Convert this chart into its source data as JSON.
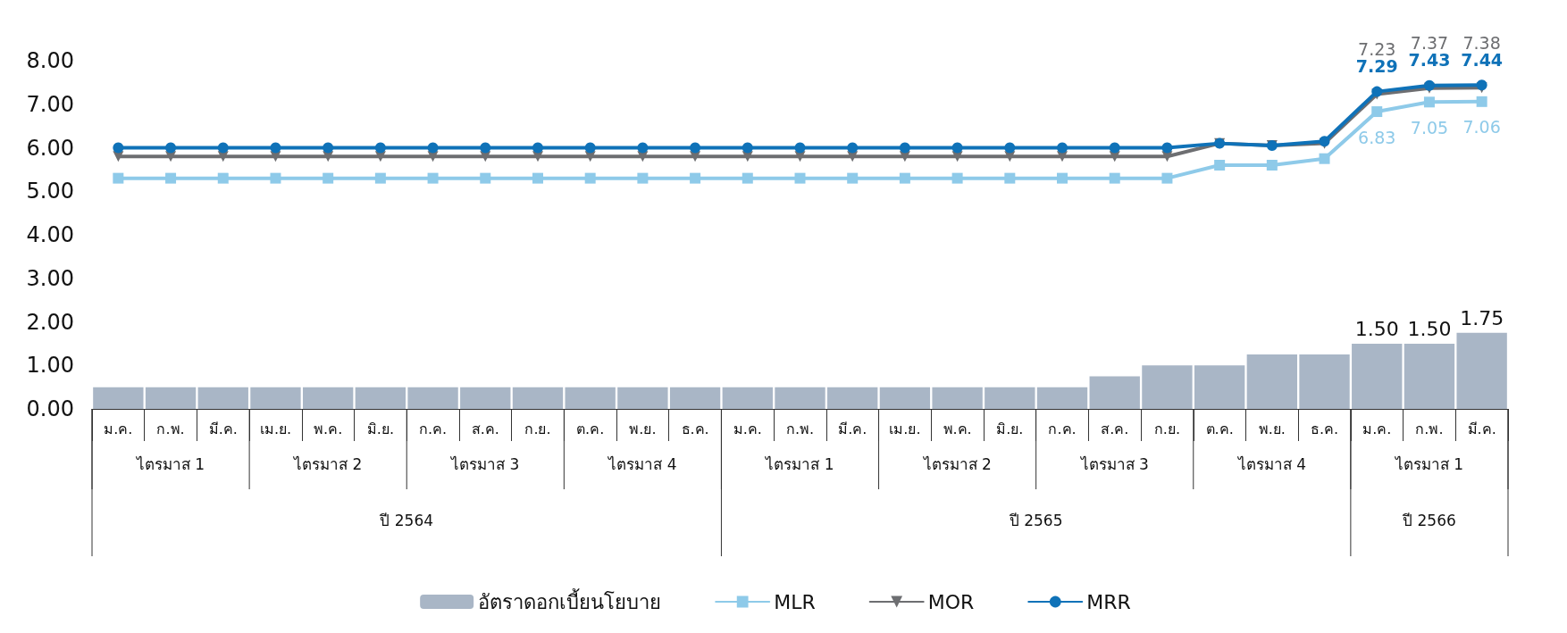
{
  "chart_data": {
    "type": "bar",
    "categories": [
      "ม.ค.",
      "ก.พ.",
      "มี.ค.",
      "เม.ย.",
      "พ.ค.",
      "มิ.ย.",
      "ก.ค.",
      "ส.ค.",
      "ก.ย.",
      "ต.ค.",
      "พ.ย.",
      "ธ.ค.",
      "ม.ค.",
      "ก.พ.",
      "มี.ค.",
      "เม.ย.",
      "พ.ค.",
      "มิ.ย.",
      "ก.ค.",
      "ส.ค.",
      "ก.ย.",
      "ต.ค.",
      "พ.ย.",
      "ธ.ค.",
      "ม.ค.",
      "ก.พ.",
      "มี.ค."
    ],
    "series": [
      {
        "name": "อัตราดอกเบี้ยนโยบาย",
        "color": "#a9b6c6",
        "values": [
          0.5,
          0.5,
          0.5,
          0.5,
          0.5,
          0.5,
          0.5,
          0.5,
          0.5,
          0.5,
          0.5,
          0.5,
          0.5,
          0.5,
          0.5,
          0.5,
          0.5,
          0.5,
          0.5,
          0.75,
          1.0,
          1.0,
          1.25,
          1.25,
          1.5,
          1.5,
          1.75
        ],
        "value_labels": [
          null,
          null,
          null,
          null,
          null,
          null,
          null,
          null,
          null,
          null,
          null,
          null,
          null,
          null,
          null,
          null,
          null,
          null,
          null,
          null,
          null,
          null,
          null,
          null,
          "1.50",
          "1.50",
          "1.75"
        ]
      },
      {
        "name": "MLR",
        "type": "line",
        "marker": "square",
        "color": "#8ecae9",
        "values": [
          5.3,
          5.3,
          5.3,
          5.3,
          5.3,
          5.3,
          5.3,
          5.3,
          5.3,
          5.3,
          5.3,
          5.3,
          5.3,
          5.3,
          5.3,
          5.3,
          5.3,
          5.3,
          5.3,
          5.3,
          5.3,
          5.6,
          5.6,
          5.75,
          6.83,
          7.05,
          7.06
        ],
        "value_labels": [
          null,
          null,
          null,
          null,
          null,
          null,
          null,
          null,
          null,
          null,
          null,
          null,
          null,
          null,
          null,
          null,
          null,
          null,
          null,
          null,
          null,
          null,
          null,
          null,
          "6.83",
          "7.05",
          "7.06"
        ]
      },
      {
        "name": "MOR",
        "type": "line",
        "marker": "triangle",
        "color": "#6d6e71",
        "values": [
          5.8,
          5.8,
          5.8,
          5.8,
          5.8,
          5.8,
          5.8,
          5.8,
          5.8,
          5.8,
          5.8,
          5.8,
          5.8,
          5.8,
          5.8,
          5.8,
          5.8,
          5.8,
          5.8,
          5.8,
          5.8,
          6.1,
          6.05,
          6.1,
          7.23,
          7.37,
          7.38
        ],
        "value_labels": [
          null,
          null,
          null,
          null,
          null,
          null,
          null,
          null,
          null,
          null,
          null,
          null,
          null,
          null,
          null,
          null,
          null,
          null,
          null,
          null,
          null,
          null,
          null,
          null,
          "7.23",
          "7.37",
          "7.38"
        ]
      },
      {
        "name": "MRR",
        "type": "line",
        "marker": "circle",
        "color": "#0f72b8",
        "values": [
          6.0,
          6.0,
          6.0,
          6.0,
          6.0,
          6.0,
          6.0,
          6.0,
          6.0,
          6.0,
          6.0,
          6.0,
          6.0,
          6.0,
          6.0,
          6.0,
          6.0,
          6.0,
          6.0,
          6.0,
          6.0,
          6.1,
          6.05,
          6.15,
          7.29,
          7.43,
          7.44
        ],
        "value_labels": [
          null,
          null,
          null,
          null,
          null,
          null,
          null,
          null,
          null,
          null,
          null,
          null,
          null,
          null,
          null,
          null,
          null,
          null,
          null,
          null,
          null,
          null,
          null,
          null,
          "7.29",
          "7.43",
          "7.44"
        ]
      }
    ],
    "ylim": [
      0,
      8
    ],
    "yticks": [
      {
        "value": 0,
        "label": "0.00"
      },
      {
        "value": 1,
        "label": "1.00"
      },
      {
        "value": 2,
        "label": "2.00"
      },
      {
        "value": 3,
        "label": "3.00"
      },
      {
        "value": 4,
        "label": "4.00"
      },
      {
        "value": 5,
        "label": "5.00"
      },
      {
        "value": 6,
        "label": "6.00"
      },
      {
        "value": 7,
        "label": "7.00"
      },
      {
        "value": 8,
        "label": "8.00"
      }
    ],
    "annotations": [
      "ไตรมาส 1",
      "ไตรมาส 2",
      "ไตรมาส 3",
      "ไตรมาส 4",
      "ไตรมาส 1",
      "ไตรมาส 2",
      "ไตรมาส 3",
      "ไตรมาส 4",
      "ไตรมาส 1",
      "ปี 2564",
      "ปี 2565",
      "ปี 2566"
    ],
    "grid": false,
    "legend": "bottom"
  }
}
